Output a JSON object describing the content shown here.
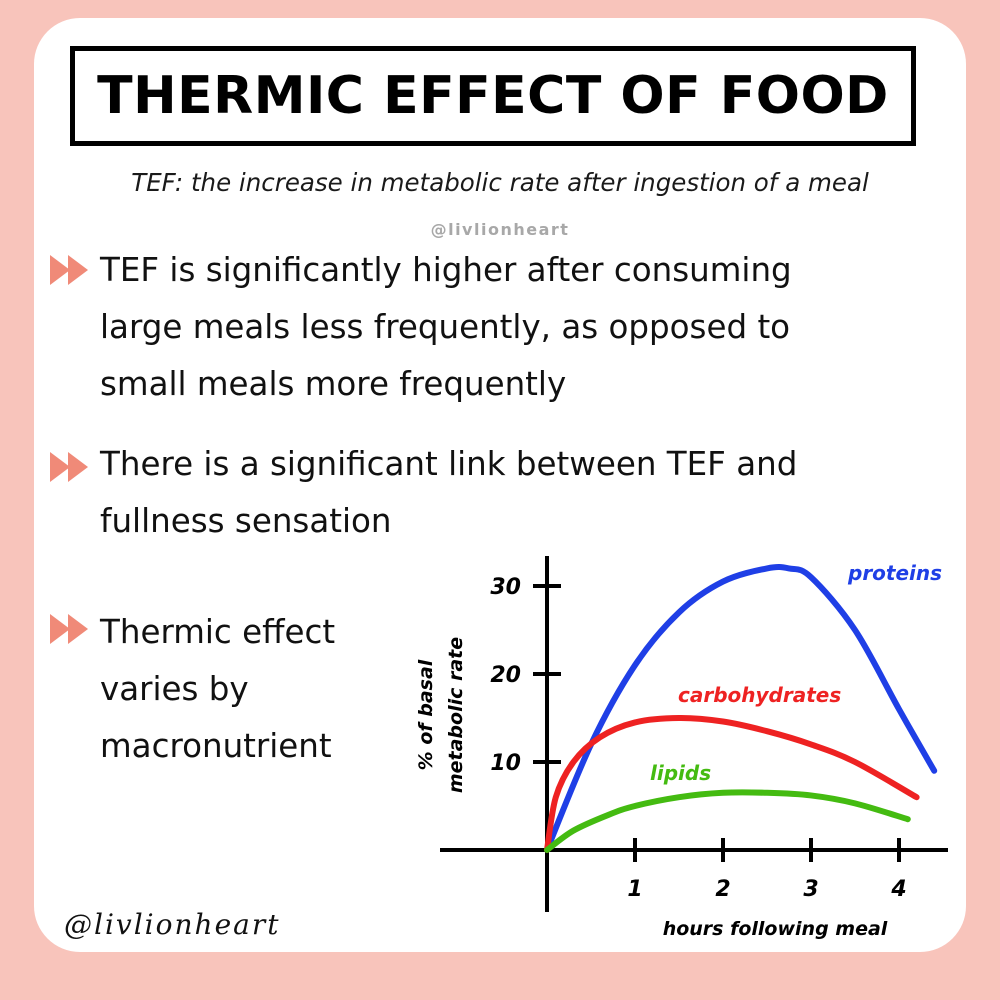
{
  "title": "THERMIC EFFECT OF FOOD",
  "subtitle": "TEF: the increase in metabolic rate after ingestion of a meal",
  "handle_top": "@livlionheart",
  "handle_bottom": "@livlionheart",
  "bullets": [
    {
      "lines": [
        "TEF is significantly higher after consuming",
        "large meals less frequently, as opposed to",
        "small meals more frequently"
      ]
    },
    {
      "lines": [
        "There is a significant link between TEF and",
        "fullness sensation"
      ]
    },
    {
      "lines": [
        "Thermic effect",
        "varies by",
        "macronutrient"
      ]
    }
  ],
  "colors": {
    "background": "#f8c4bb",
    "card": "#ffffff",
    "arrow": "#f08a78",
    "proteins": "#1f3fe6",
    "carbohydrates": "#ee2222",
    "lipids": "#44bb11"
  },
  "icons": {
    "bullet": "double-chevron-right-icon"
  },
  "chart_data": {
    "type": "line",
    "xlabel": "hours following meal",
    "ylabel_lines": [
      "% of basal",
      "metabolic rate"
    ],
    "xticks": [
      "1",
      "2",
      "3",
      "4"
    ],
    "yticks": [
      "10",
      "20",
      "30"
    ],
    "xlim": [
      0,
      4.5
    ],
    "ylim": [
      0,
      32
    ],
    "series": [
      {
        "name": "proteins",
        "color": "#1f3fe6",
        "x": [
          0,
          0.5,
          1,
          1.5,
          2,
          2.5,
          2.75,
          3,
          3.5,
          4,
          4.4
        ],
        "y": [
          0,
          12,
          21,
          27,
          30.5,
          32,
          32,
          31,
          25,
          16,
          9
        ]
      },
      {
        "name": "carbohydrates",
        "color": "#ee2222",
        "x": [
          0,
          0.1,
          0.3,
          0.6,
          1,
          1.5,
          2,
          2.5,
          3,
          3.5,
          4.2
        ],
        "y": [
          0,
          6,
          10,
          12.8,
          14.5,
          15,
          14.6,
          13.5,
          12,
          10,
          6
        ]
      },
      {
        "name": "lipids",
        "color": "#44bb11",
        "x": [
          0,
          0.3,
          0.7,
          1,
          1.5,
          2,
          2.5,
          3,
          3.5,
          4.1
        ],
        "y": [
          0,
          2.2,
          4,
          5,
          6,
          6.5,
          6.5,
          6.2,
          5.3,
          3.5
        ]
      }
    ]
  }
}
